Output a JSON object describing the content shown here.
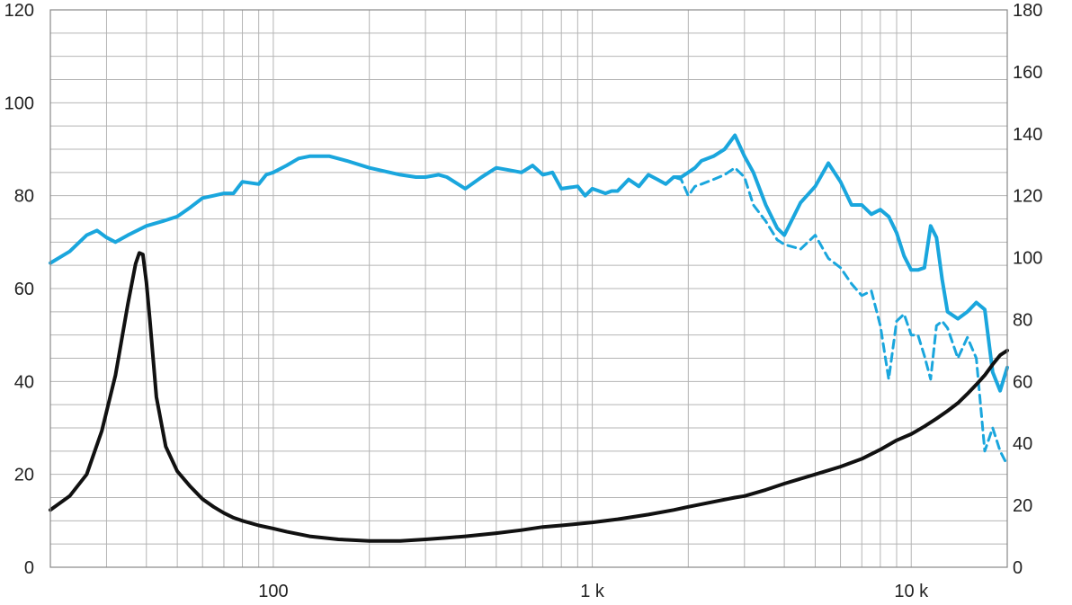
{
  "chart_data": {
    "type": "line",
    "x_scale": "log",
    "xlim": [
      20,
      20000
    ],
    "ylim_left": [
      0,
      120
    ],
    "ylim_right": [
      0,
      180
    ],
    "grid": true,
    "x_ticks": [
      {
        "value": 100,
        "label": "100"
      },
      {
        "value": 1000,
        "label": "1 k"
      },
      {
        "value": 10000,
        "label": "10 k"
      }
    ],
    "y_left_ticks": [
      {
        "value": 0,
        "label": "0"
      },
      {
        "value": 20,
        "label": "20"
      },
      {
        "value": 40,
        "label": "40"
      },
      {
        "value": 60,
        "label": "60"
      },
      {
        "value": 80,
        "label": "80"
      },
      {
        "value": 100,
        "label": "100"
      },
      {
        "value": 120,
        "label": "120"
      }
    ],
    "y_right_ticks": [
      {
        "value": 0,
        "label": "0"
      },
      {
        "value": 20,
        "label": "20"
      },
      {
        "value": 40,
        "label": "40"
      },
      {
        "value": 60,
        "label": "60"
      },
      {
        "value": 80,
        "label": "80"
      },
      {
        "value": 100,
        "label": "100"
      },
      {
        "value": 120,
        "label": "120"
      },
      {
        "value": 140,
        "label": "140"
      },
      {
        "value": 160,
        "label": "160"
      },
      {
        "value": 180,
        "label": "180"
      }
    ],
    "series": [
      {
        "axis": "left",
        "color": "#1aa6dd",
        "style": "solid",
        "x": [
          20,
          23,
          26,
          28,
          30,
          32,
          35,
          40,
          45,
          50,
          55,
          60,
          65,
          70,
          75,
          80,
          90,
          95,
          100,
          110,
          120,
          130,
          150,
          170,
          200,
          250,
          280,
          300,
          330,
          350,
          400,
          450,
          500,
          550,
          600,
          650,
          700,
          750,
          800,
          900,
          950,
          1000,
          1050,
          1100,
          1150,
          1200,
          1300,
          1400,
          1500,
          1600,
          1700,
          1800,
          1900,
          2000,
          2100,
          2200,
          2400,
          2600,
          2800,
          3000,
          3200,
          3500,
          3800,
          4000,
          4500,
          5000,
          5500,
          6000,
          6500,
          7000,
          7500,
          8000,
          8500,
          9000,
          9500,
          10000,
          10500,
          11000,
          11500,
          12000,
          12500,
          13000,
          14000,
          15000,
          16000,
          17000,
          18000,
          19000,
          20000
        ],
        "y": [
          65.5,
          68,
          71.5,
          72.5,
          71,
          70,
          71.5,
          73.5,
          74.5,
          75.5,
          77.5,
          79.5,
          80,
          80.5,
          80.5,
          83,
          82.5,
          84.5,
          85,
          86.5,
          88,
          88.5,
          88.5,
          87.5,
          86,
          84.5,
          84,
          84,
          84.5,
          84,
          81.5,
          84,
          86,
          85.5,
          85,
          86.5,
          84.5,
          85,
          81.5,
          82,
          80,
          81.5,
          81,
          80.5,
          81,
          81,
          83.5,
          82,
          84.5,
          83.5,
          82.5,
          84,
          84,
          85,
          86,
          87.5,
          88.5,
          90,
          93,
          88.5,
          85,
          78,
          73,
          71.5,
          78.5,
          82,
          87,
          83,
          78,
          78,
          76,
          77,
          75.5,
          72,
          67,
          64,
          64,
          64.5,
          73.5,
          71,
          62,
          55,
          53.5,
          55,
          57,
          55.5,
          42,
          38,
          43
        ]
      },
      {
        "axis": "left",
        "color": "#1aa6dd",
        "style": "dashed",
        "x": [
          1700,
          1800,
          1900,
          2000,
          2100,
          2200,
          2400,
          2600,
          2800,
          3000,
          3200,
          3500,
          3800,
          4000,
          4500,
          5000,
          5500,
          6000,
          6500,
          7000,
          7500,
          8000,
          8500,
          9000,
          9500,
          10000,
          10500,
          11000,
          11500,
          12000,
          12500,
          13000,
          14000,
          15000,
          16000,
          17000,
          18000,
          19000,
          20000
        ],
        "y": [
          82.5,
          84,
          83.5,
          80,
          82,
          82.5,
          83.5,
          84.5,
          86,
          84,
          78,
          74.5,
          70.5,
          69.5,
          68.5,
          71.5,
          66.5,
          64.5,
          61,
          58.5,
          59.5,
          52,
          40.5,
          53,
          54.5,
          50,
          50,
          45.5,
          40.5,
          52,
          53,
          51.5,
          45,
          49.5,
          45,
          25,
          30,
          25,
          22
        ]
      },
      {
        "axis": "right",
        "color": "#111111",
        "style": "solid",
        "x": [
          20,
          23,
          26,
          29,
          32,
          35,
          37,
          38,
          39,
          40,
          41,
          43,
          46,
          50,
          55,
          60,
          65,
          70,
          75,
          80,
          90,
          100,
          110,
          130,
          160,
          200,
          250,
          300,
          350,
          400,
          500,
          600,
          700,
          800,
          900,
          1000,
          1200,
          1500,
          1800,
          2000,
          2500,
          2800,
          3000,
          3500,
          4000,
          5000,
          6000,
          7000,
          8000,
          9000,
          10000,
          11000,
          12000,
          13000,
          14000,
          15000,
          16000,
          17000,
          18000,
          19000,
          20000
        ],
        "y": [
          18.5,
          23,
          30,
          44,
          62,
          85,
          98,
          101.5,
          101,
          92,
          80,
          55,
          39,
          31,
          26,
          22,
          19.5,
          17.5,
          16,
          15,
          13.5,
          12.5,
          11.5,
          10,
          9,
          8.5,
          8.5,
          9,
          9.5,
          10,
          11,
          12,
          13,
          13.5,
          14,
          14.5,
          15.5,
          17,
          18.5,
          19.5,
          21.5,
          22.5,
          23,
          25,
          27,
          30,
          32.5,
          35,
          38,
          41,
          43,
          45.5,
          48,
          50.5,
          53,
          56,
          59,
          62,
          65.5,
          68.5,
          70
        ]
      }
    ]
  }
}
